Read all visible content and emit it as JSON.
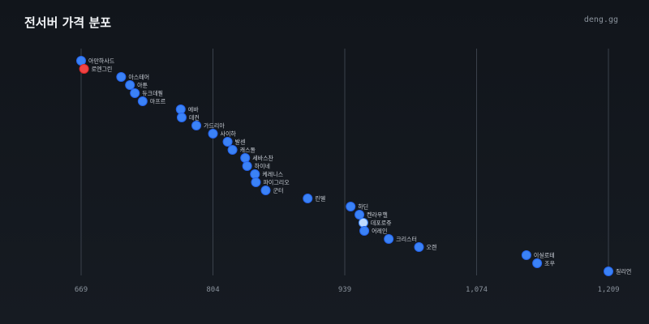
{
  "header": {
    "title": "전서버 가격 분포",
    "brand": "deng.gg"
  },
  "colors": {
    "point": "#3b82f6",
    "point_edge": "#2563eb",
    "highlight": "#ef4444",
    "highlight_edge": "#dc2626",
    "light": "#bfdbfe"
  },
  "chart_data": {
    "type": "scatter",
    "title": "전서버 가격 분포",
    "xlabel": "",
    "ylabel": "",
    "xlim": [
      669,
      1209
    ],
    "xticks": [
      669,
      804,
      939,
      1074,
      1209
    ],
    "xtick_labels": [
      "669",
      "804",
      "939",
      "1,074",
      "1,209"
    ],
    "grid": "vertical",
    "points": [
      {
        "label": "아만하사드",
        "x": 669,
        "style": "normal"
      },
      {
        "label": "로엔그린",
        "x": 672,
        "style": "highlight"
      },
      {
        "label": "아스테어",
        "x": 710,
        "style": "normal"
      },
      {
        "label": "아툰",
        "x": 719,
        "style": "normal"
      },
      {
        "label": "듀크데필",
        "x": 724,
        "style": "normal"
      },
      {
        "label": "마프르",
        "x": 732,
        "style": "normal"
      },
      {
        "label": "에바",
        "x": 771,
        "style": "normal"
      },
      {
        "label": "데컨",
        "x": 772,
        "style": "normal"
      },
      {
        "label": "가드리아",
        "x": 787,
        "style": "normal"
      },
      {
        "label": "사이하",
        "x": 804,
        "style": "normal"
      },
      {
        "label": "발센",
        "x": 819,
        "style": "normal"
      },
      {
        "label": "캐스돌",
        "x": 824,
        "style": "normal"
      },
      {
        "label": "세바스찬",
        "x": 837,
        "style": "normal"
      },
      {
        "label": "하이네",
        "x": 839,
        "style": "normal"
      },
      {
        "label": "케레니스",
        "x": 847,
        "style": "normal"
      },
      {
        "label": "파이그리오",
        "x": 848,
        "style": "normal"
      },
      {
        "label": "군터",
        "x": 858,
        "style": "normal"
      },
      {
        "label": "린델",
        "x": 901,
        "style": "normal"
      },
      {
        "label": "하딘",
        "x": 945,
        "style": "normal"
      },
      {
        "label": "켄라우헬",
        "x": 954,
        "style": "normal"
      },
      {
        "label": "데포로쥬",
        "x": 958,
        "style": "light"
      },
      {
        "label": "어레인",
        "x": 959,
        "style": "normal"
      },
      {
        "label": "크리스터",
        "x": 984,
        "style": "normal"
      },
      {
        "label": "오렌",
        "x": 1015,
        "style": "normal"
      },
      {
        "label": "이실로테",
        "x": 1125,
        "style": "normal"
      },
      {
        "label": "조우",
        "x": 1136,
        "style": "normal"
      },
      {
        "label": "질리언",
        "x": 1209,
        "style": "normal"
      }
    ]
  }
}
